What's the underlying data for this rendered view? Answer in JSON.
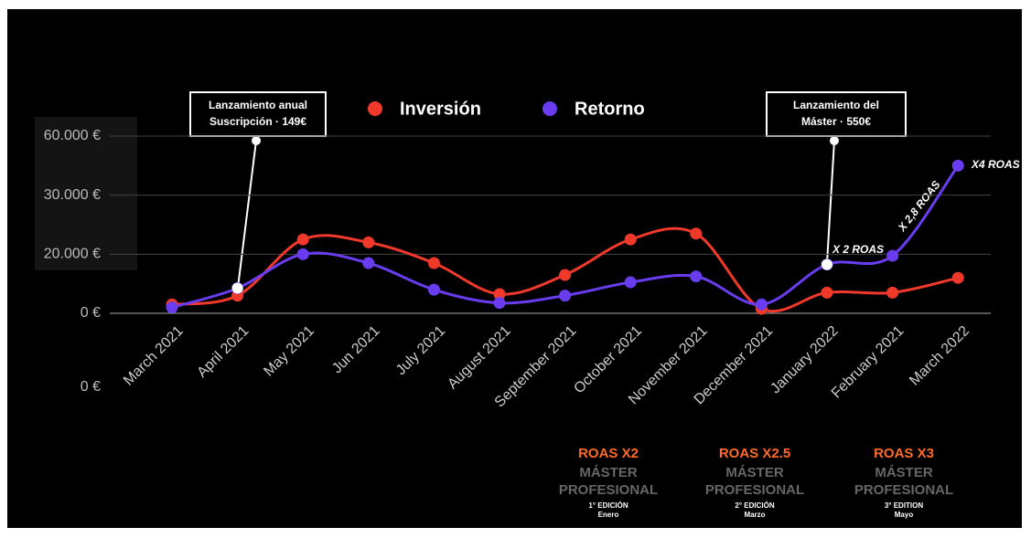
{
  "chart_data": {
    "type": "line",
    "categories": [
      "March 2021",
      "April 2021",
      "May 2021",
      "Jun 2021",
      "July 2021",
      "August 2021",
      "September 2021",
      "October 2021",
      "November 2021",
      "December 2021",
      "January 2022",
      "February 2021",
      "March 2022"
    ],
    "series": [
      {
        "name": "Inversión",
        "color": "#f0392b",
        "values": [
          3000,
          6000,
          22500,
          22000,
          17000,
          6500,
          13000,
          22500,
          23500,
          1500,
          7000,
          7000,
          12000
        ]
      },
      {
        "name": "Retorno",
        "color": "#6a3cf0",
        "values": [
          2000,
          8500,
          20000,
          17000,
          8000,
          3500,
          6000,
          10500,
          12500,
          3000,
          16500,
          19500,
          45000
        ]
      }
    ],
    "ylim": [
      0,
      60000
    ],
    "yticks": [
      {
        "value": 0,
        "label": "0 €"
      },
      {
        "value": 20000,
        "label": "20.000 €"
      },
      {
        "value": 30000,
        "label": "30.000 €"
      },
      {
        "value": 60000,
        "label": "60.000 €"
      }
    ],
    "grid": true,
    "extra_axis_label": "0 €",
    "callouts": [
      {
        "lines": [
          "Lanzamiento anual",
          "Suscripción  · 149€"
        ]
      },
      {
        "lines": [
          "Lanzamiento del",
          "Máster · 550€"
        ]
      }
    ],
    "roas_labels": [
      "X 2 ROAS",
      "X 2,8 ROAS",
      "X4 ROAS"
    ],
    "editions": [
      {
        "roas": "ROAS X2",
        "title": [
          "MÁSTER",
          "PROFESIONAL"
        ],
        "edition": "1° EDICIÓN",
        "month": "Enero"
      },
      {
        "roas": "ROAS X2.5",
        "title": [
          "MÁSTER",
          "PROFESIONAL"
        ],
        "edition": "2° EDICIÓN",
        "month": "Marzo"
      },
      {
        "roas": "ROAS X3",
        "title": [
          "MÁSTER",
          "PROFESIONAL"
        ],
        "edition": "3° EDITION",
        "month": "Mayo"
      }
    ]
  }
}
